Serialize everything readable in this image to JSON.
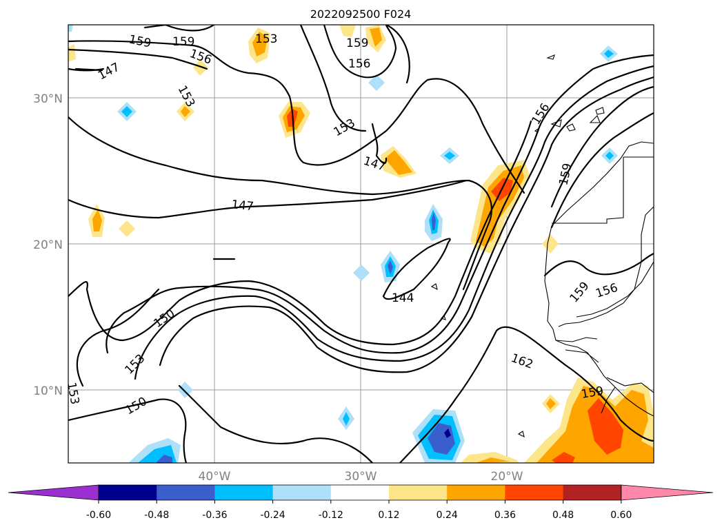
{
  "title": "2022092500 F024",
  "axes": {
    "lat_labels": [
      "30°N",
      "20°N",
      "10°N"
    ],
    "lon_labels": [
      "40°W",
      "30°W",
      "20°W"
    ]
  },
  "contour_labels": [
    "159",
    "159",
    "156",
    "147",
    "153",
    "153",
    "159",
    "156",
    "153",
    "147",
    "147",
    "156",
    "159",
    "144",
    "159",
    "156",
    "162",
    "150",
    "153",
    "153",
    "150",
    "159"
  ],
  "colorbar": {
    "levels": [
      "-0.60",
      "-0.48",
      "-0.36",
      "-0.24",
      "-0.12",
      "0.12",
      "0.24",
      "0.36",
      "0.48",
      "0.60"
    ],
    "colors": [
      "#9b30d0",
      "#00008f",
      "#3a5fcd",
      "#00bfff",
      "#aee0fa",
      "#ffffff",
      "#fde68a",
      "#ffa500",
      "#ff4500",
      "#b22222",
      "#ff88aa"
    ]
  },
  "fill_colors": {
    "warm_light": "#fde68a",
    "warm_mid": "#ffa500",
    "warm_high": "#ff4500",
    "cold_light": "#aee0fa",
    "cold_mid": "#00bfff",
    "cold_high": "#3a5fcd",
    "cold_max": "#00008f"
  }
}
